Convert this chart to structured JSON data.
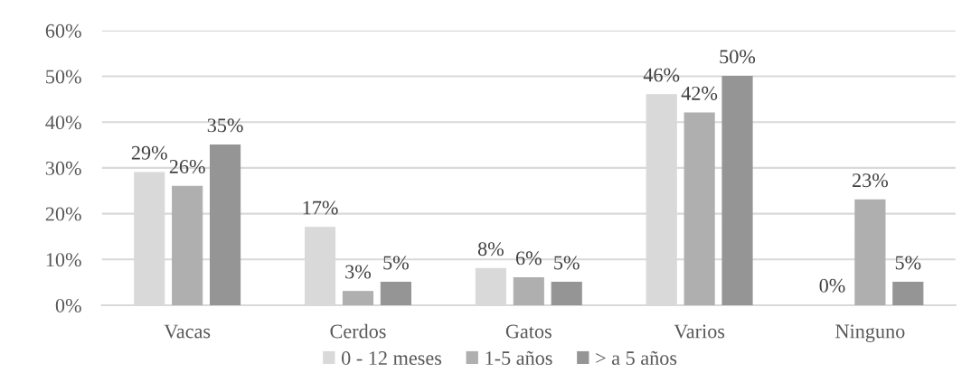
{
  "chart_data": {
    "type": "bar",
    "categories": [
      "Vacas",
      "Cerdos",
      "Gatos",
      "Varios",
      "Ninguno"
    ],
    "series": [
      {
        "name": "0 - 12 meses",
        "color": "#d9d9d9",
        "values": [
          29,
          17,
          8,
          46,
          0
        ],
        "value_labels": [
          "29%",
          "17%",
          "8%",
          "46%",
          "0%"
        ]
      },
      {
        "name": "1-5 años",
        "color": "#afafaf",
        "values": [
          26,
          3,
          6,
          42,
          23
        ],
        "value_labels": [
          "26%",
          "3%",
          "6%",
          "42%",
          "23%"
        ]
      },
      {
        "name": "> a 5 años",
        "color": "#959595",
        "values": [
          35,
          5,
          5,
          50,
          5
        ],
        "value_labels": [
          "35%",
          "5%",
          "5%",
          "50%",
          "5%"
        ]
      }
    ],
    "ylim": [
      0,
      60
    ],
    "yticks": [
      {
        "value": 0,
        "label": "0%"
      },
      {
        "value": 10,
        "label": "10%"
      },
      {
        "value": 20,
        "label": "20%"
      },
      {
        "value": 30,
        "label": "30%"
      },
      {
        "value": 40,
        "label": "40%"
      },
      {
        "value": 50,
        "label": "50%"
      },
      {
        "value": 60,
        "label": "60%"
      }
    ],
    "grid": "y",
    "legend": "bottom"
  }
}
